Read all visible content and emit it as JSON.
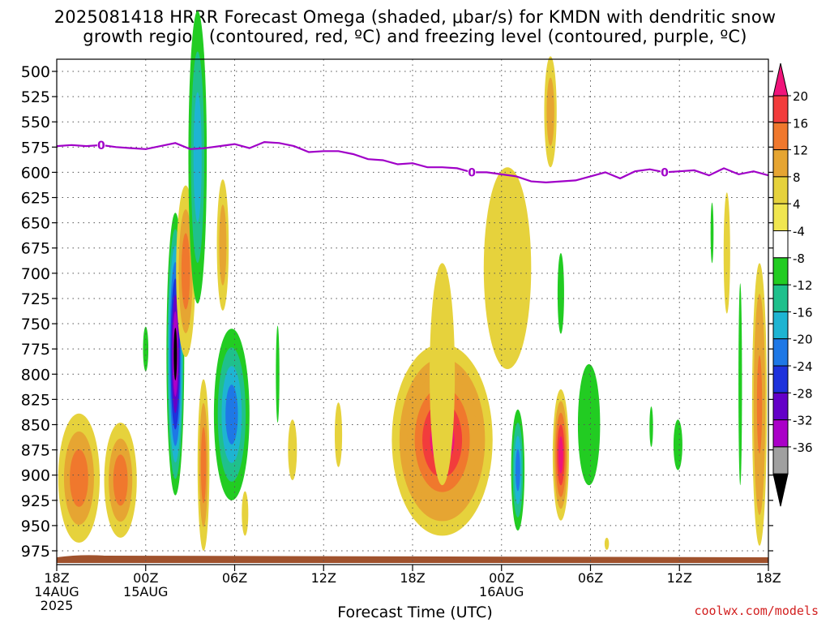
{
  "title_line1": "2025081418 HRRR Forecast Omega (shaded, μbar/s) for KMDN with dendritic snow",
  "title_line2": "growth region (contoured, red, ºC) and freezing level (contoured, purple, ºC)",
  "credit": "coolwx.com/models",
  "chart_data": {
    "type": "heatmap",
    "xlabel": "Forecast Time (UTC)",
    "ylabel": "",
    "y_ticks": [
      "500",
      "525",
      "550",
      "575",
      "600",
      "625",
      "650",
      "675",
      "700",
      "725",
      "750",
      "775",
      "800",
      "825",
      "850",
      "875",
      "900",
      "925",
      "950",
      "975"
    ],
    "ylim": [
      500,
      985
    ],
    "x_ticks": [
      {
        "hour": 0,
        "lines": [
          "18Z",
          "14AUG",
          "2025"
        ]
      },
      {
        "hour": 6,
        "lines": [
          "00Z",
          "15AUG"
        ]
      },
      {
        "hour": 12,
        "lines": [
          "06Z"
        ]
      },
      {
        "hour": 18,
        "lines": [
          "12Z"
        ]
      },
      {
        "hour": 24,
        "lines": [
          "18Z"
        ]
      },
      {
        "hour": 30,
        "lines": [
          "00Z",
          "16AUG"
        ]
      },
      {
        "hour": 36,
        "lines": [
          "06Z"
        ]
      },
      {
        "hour": 42,
        "lines": [
          "12Z"
        ]
      },
      {
        "hour": 48,
        "lines": [
          "18Z"
        ]
      }
    ],
    "xlim": [
      0,
      48
    ],
    "grid": true,
    "colorbar": {
      "labels": [
        "20",
        "16",
        "12",
        "8",
        "4",
        "-4",
        "-8",
        "-12",
        "-16",
        "-20",
        "-24",
        "-28",
        "-32",
        "-36"
      ],
      "colors": [
        "#f0147a",
        "#f23c3c",
        "#f0782d",
        "#e6a532",
        "#e6d23c",
        "#f0e650",
        "#ffffff",
        "#22cc22",
        "#1fc08c",
        "#1eb4d2",
        "#1e78e6",
        "#1e32dc",
        "#6400c8",
        "#aa00c8",
        "#a0a0a0",
        "#000000"
      ]
    },
    "freezing_level": {
      "label": "0",
      "color": "#a000c8",
      "points": [
        [
          0,
          574
        ],
        [
          1,
          573
        ],
        [
          2,
          574
        ],
        [
          3,
          573
        ],
        [
          4,
          575
        ],
        [
          5,
          576
        ],
        [
          6,
          577
        ],
        [
          7,
          574
        ],
        [
          8,
          571
        ],
        [
          9,
          577
        ],
        [
          10,
          576
        ],
        [
          11,
          574
        ],
        [
          12,
          572
        ],
        [
          13,
          576
        ],
        [
          14,
          570
        ],
        [
          15,
          571
        ],
        [
          16,
          574
        ],
        [
          17,
          580
        ],
        [
          18,
          579
        ],
        [
          19,
          579
        ],
        [
          20,
          582
        ],
        [
          21,
          587
        ],
        [
          22,
          588
        ],
        [
          23,
          592
        ],
        [
          24,
          591
        ],
        [
          25,
          595
        ],
        [
          26,
          595
        ],
        [
          27,
          596
        ],
        [
          28,
          600
        ],
        [
          29,
          600
        ],
        [
          30,
          602
        ],
        [
          31,
          604
        ],
        [
          32,
          609
        ],
        [
          33,
          610
        ],
        [
          34,
          609
        ],
        [
          35,
          608
        ],
        [
          36,
          604
        ],
        [
          37,
          600
        ],
        [
          38,
          606
        ],
        [
          39,
          599
        ],
        [
          40,
          597
        ],
        [
          41,
          600
        ],
        [
          42,
          599
        ],
        [
          43,
          598
        ],
        [
          44,
          603
        ],
        [
          45,
          596
        ],
        [
          46,
          602
        ],
        [
          47,
          599
        ],
        [
          48,
          603
        ]
      ]
    },
    "terrain_color": "#a0522d",
    "omega_features": [
      {
        "x": 1.5,
        "p": 903,
        "wx": 1.4,
        "wp": 64,
        "levels": [
          6,
          10,
          13
        ]
      },
      {
        "x": 4.3,
        "p": 905,
        "wx": 1.1,
        "wp": 57,
        "levels": [
          6,
          10,
          13
        ]
      },
      {
        "x": 6.0,
        "p": 775,
        "wx": 0.18,
        "wp": 22,
        "levels": [
          -5
        ]
      },
      {
        "x": 8.0,
        "p": 780,
        "wx": 0.6,
        "wp": 140,
        "levels": [
          -5,
          -10,
          -14,
          -19,
          -23,
          -27,
          -31,
          -36
        ]
      },
      {
        "x": 8.7,
        "p": 698,
        "wx": 0.65,
        "wp": 85,
        "levels": [
          5,
          9,
          12
        ]
      },
      {
        "x": 9.5,
        "p": 585,
        "wx": 0.62,
        "wp": 145,
        "levels": [
          -5,
          -10,
          -14
        ]
      },
      {
        "x": 9.9,
        "p": 890,
        "wx": 0.4,
        "wp": 85,
        "levels": [
          5,
          9,
          12
        ]
      },
      {
        "x": 11.2,
        "p": 672,
        "wx": 0.4,
        "wp": 65,
        "levels": [
          5,
          8
        ]
      },
      {
        "x": 11.8,
        "p": 840,
        "wx": 1.2,
        "wp": 85,
        "levels": [
          -5,
          -10,
          -14,
          -17
        ]
      },
      {
        "x": 12.7,
        "p": 938,
        "wx": 0.22,
        "wp": 22,
        "levels": [
          6
        ]
      },
      {
        "x": 14.9,
        "p": 800,
        "wx": 0.12,
        "wp": 48,
        "levels": [
          -5
        ]
      },
      {
        "x": 15.9,
        "p": 875,
        "wx": 0.3,
        "wp": 30,
        "levels": [
          5
        ]
      },
      {
        "x": 19.0,
        "p": 860,
        "wx": 0.25,
        "wp": 32,
        "levels": [
          6
        ]
      },
      {
        "x": 26.0,
        "p": 865,
        "wx": 3.4,
        "wp": 95,
        "levels": [
          5,
          8,
          11,
          14,
          17,
          20
        ]
      },
      {
        "x": 26.0,
        "p": 800,
        "wx": 0.85,
        "wp": 110,
        "levels": [
          5
        ]
      },
      {
        "x": 30.4,
        "p": 695,
        "wx": 1.6,
        "wp": 100,
        "levels": [
          5
        ]
      },
      {
        "x": 31.1,
        "p": 895,
        "wx": 0.45,
        "wp": 60,
        "levels": [
          -6,
          -10,
          -14,
          -17
        ]
      },
      {
        "x": 33.3,
        "p": 540,
        "wx": 0.42,
        "wp": 55,
        "levels": [
          5,
          8
        ]
      },
      {
        "x": 34.0,
        "p": 720,
        "wx": 0.22,
        "wp": 40,
        "levels": [
          -6
        ]
      },
      {
        "x": 34.0,
        "p": 880,
        "wx": 0.55,
        "wp": 65,
        "levels": [
          6,
          10,
          13,
          16,
          20
        ]
      },
      {
        "x": 35.9,
        "p": 850,
        "wx": 0.75,
        "wp": 60,
        "levels": [
          -6
        ]
      },
      {
        "x": 37.1,
        "p": 968,
        "wx": 0.15,
        "wp": 6,
        "levels": [
          5
        ]
      },
      {
        "x": 40.1,
        "p": 852,
        "wx": 0.12,
        "wp": 20,
        "levels": [
          -5
        ]
      },
      {
        "x": 41.9,
        "p": 870,
        "wx": 0.3,
        "wp": 25,
        "levels": [
          -6
        ]
      },
      {
        "x": 44.2,
        "p": 660,
        "wx": 0.1,
        "wp": 30,
        "levels": [
          -5
        ]
      },
      {
        "x": 45.2,
        "p": 680,
        "wx": 0.22,
        "wp": 60,
        "levels": [
          5
        ]
      },
      {
        "x": 46.1,
        "p": 810,
        "wx": 0.12,
        "wp": 100,
        "levels": [
          -5
        ]
      },
      {
        "x": 47.4,
        "p": 830,
        "wx": 0.5,
        "wp": 140,
        "levels": [
          5,
          8,
          11,
          14
        ]
      }
    ]
  }
}
